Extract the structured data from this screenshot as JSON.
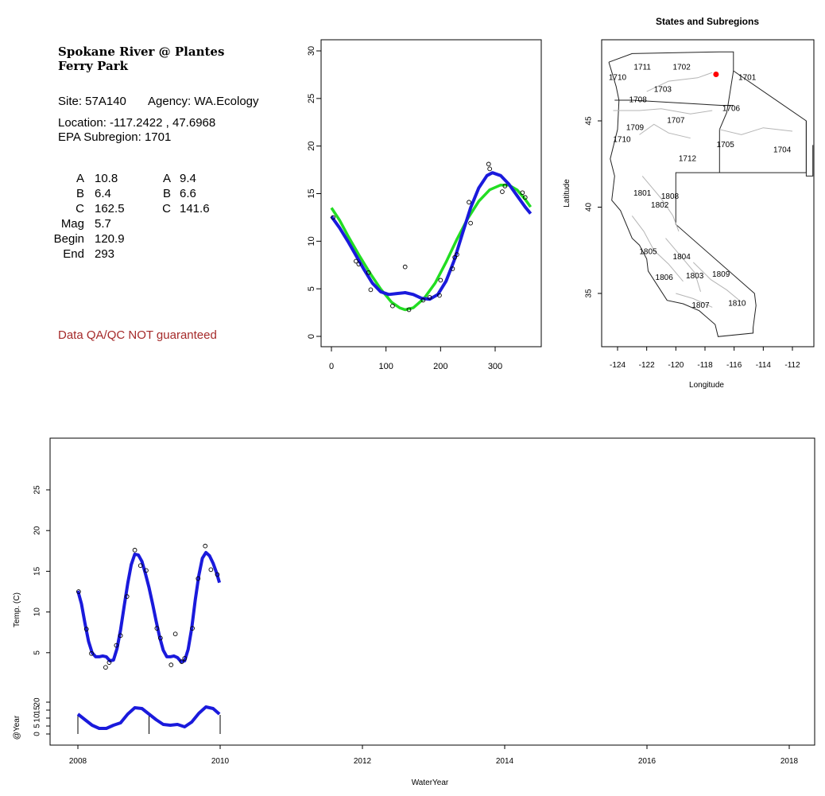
{
  "site": {
    "title_line1": "Spokane River @ Plantes",
    "title_line2": "Ferry Park",
    "site_line": "Site: 57A140",
    "agency_line": "Agency: WA.Ecology",
    "location_line": "Location: -117.2422 , 47.6968",
    "subregion_line": "EPA Subregion: 1701",
    "params_left": [
      {
        "label": "A",
        "value": "10.8"
      },
      {
        "label": "B",
        "value": "6.4"
      },
      {
        "label": "C",
        "value": "162.5"
      },
      {
        "label": "Mag",
        "value": "5.7"
      },
      {
        "label": "Begin",
        "value": "120.9"
      },
      {
        "label": "End",
        "value": "293"
      }
    ],
    "params_right": [
      {
        "label": "A",
        "value": "9.4"
      },
      {
        "label": "B",
        "value": "6.6"
      },
      {
        "label": "C",
        "value": "141.6"
      }
    ],
    "disclaimer": "Data QA/QC NOT guaranteed",
    "disclaimer_color": "#a52a2a"
  },
  "chart_data": [
    {
      "id": "seasonal",
      "type": "scatter",
      "xlim": [
        0,
        365
      ],
      "ylim": [
        0,
        30
      ],
      "xticks": [
        0,
        100,
        200,
        300
      ],
      "yticks": [
        0,
        5,
        10,
        15,
        20,
        25,
        30
      ],
      "points": [
        [
          3,
          12.5
        ],
        [
          45,
          7.9
        ],
        [
          50,
          7.6
        ],
        [
          68,
          6.7
        ],
        [
          72,
          4.9
        ],
        [
          112,
          3.2
        ],
        [
          135,
          7.3
        ],
        [
          142,
          2.8
        ],
        [
          168,
          3.8
        ],
        [
          180,
          4.1
        ],
        [
          198,
          4.3
        ],
        [
          200,
          5.9
        ],
        [
          222,
          7.1
        ],
        [
          226,
          8.3
        ],
        [
          230,
          8.6
        ],
        [
          252,
          14.1
        ],
        [
          255,
          11.9
        ],
        [
          288,
          18.1
        ],
        [
          290,
          17.6
        ],
        [
          313,
          15.2
        ],
        [
          318,
          15.8
        ],
        [
          350,
          15.1
        ],
        [
          355,
          14.6
        ]
      ],
      "series": [
        {
          "color": "#22dd22",
          "line": [
            [
              0,
              13.5
            ],
            [
              15,
              12.2
            ],
            [
              30,
              10.6
            ],
            [
              50,
              8.6
            ],
            [
              70,
              6.7
            ],
            [
              90,
              5.0
            ],
            [
              110,
              3.6
            ],
            [
              125,
              3.0
            ],
            [
              135,
              2.8
            ],
            [
              150,
              3.0
            ],
            [
              170,
              4.0
            ],
            [
              190,
              5.6
            ],
            [
              210,
              7.8
            ],
            [
              230,
              10.2
            ],
            [
              250,
              12.4
            ],
            [
              270,
              14.2
            ],
            [
              290,
              15.4
            ],
            [
              310,
              15.9
            ],
            [
              325,
              15.9
            ],
            [
              340,
              15.4
            ],
            [
              355,
              14.4
            ],
            [
              365,
              13.6
            ]
          ]
        },
        {
          "color": "#1a1adc",
          "line": [
            [
              0,
              12.6
            ],
            [
              15,
              11.4
            ],
            [
              30,
              10.0
            ],
            [
              45,
              8.5
            ],
            [
              60,
              7.0
            ],
            [
              75,
              5.6
            ],
            [
              90,
              4.7
            ],
            [
              105,
              4.4
            ],
            [
              120,
              4.5
            ],
            [
              135,
              4.6
            ],
            [
              150,
              4.4
            ],
            [
              165,
              4.0
            ],
            [
              180,
              3.9
            ],
            [
              195,
              4.4
            ],
            [
              210,
              5.8
            ],
            [
              225,
              8.0
            ],
            [
              240,
              10.8
            ],
            [
              255,
              13.5
            ],
            [
              270,
              15.6
            ],
            [
              285,
              16.9
            ],
            [
              295,
              17.2
            ],
            [
              310,
              16.9
            ],
            [
              325,
              16.0
            ],
            [
              340,
              14.8
            ],
            [
              355,
              13.6
            ],
            [
              365,
              12.9
            ]
          ]
        }
      ]
    },
    {
      "id": "map",
      "type": "scatter",
      "title": "States and Subregions",
      "xlabel": "Longitude",
      "ylabel": "Latitude",
      "xlim": [
        -125.5,
        -110.5
      ],
      "ylim": [
        32,
        49.2
      ],
      "xticks": [
        -124,
        -122,
        -120,
        -118,
        -116,
        -114,
        -112
      ],
      "yticks": [
        35,
        40,
        45
      ],
      "site_point": {
        "lon": -117.2422,
        "lat": 47.6968,
        "color": "#ff0000"
      },
      "subregions": [
        {
          "label": "1711",
          "lon": -122.3,
          "lat": 48.1
        },
        {
          "label": "1702",
          "lon": -119.6,
          "lat": 48.1
        },
        {
          "label": "1710",
          "lon": -124.0,
          "lat": 47.5
        },
        {
          "label": "1701",
          "lon": -115.1,
          "lat": 47.5
        },
        {
          "label": "1703",
          "lon": -120.9,
          "lat": 46.8
        },
        {
          "label": "1708",
          "lon": -122.6,
          "lat": 46.2
        },
        {
          "label": "1706",
          "lon": -116.2,
          "lat": 45.7
        },
        {
          "label": "1707",
          "lon": -120.0,
          "lat": 45.0
        },
        {
          "label": "1709",
          "lon": -122.8,
          "lat": 44.6
        },
        {
          "label": "1710",
          "lon": -123.7,
          "lat": 43.9
        },
        {
          "label": "1705",
          "lon": -116.6,
          "lat": 43.6
        },
        {
          "label": "1704",
          "lon": -112.7,
          "lat": 43.3
        },
        {
          "label": "1712",
          "lon": -119.2,
          "lat": 42.8
        },
        {
          "label": "1801",
          "lon": -122.3,
          "lat": 40.8
        },
        {
          "label": "1808",
          "lon": -120.4,
          "lat": 40.6
        },
        {
          "label": "1802",
          "lon": -121.1,
          "lat": 40.1
        },
        {
          "label": "1805",
          "lon": -121.9,
          "lat": 37.4
        },
        {
          "label": "1804",
          "lon": -119.6,
          "lat": 37.1
        },
        {
          "label": "1806",
          "lon": -120.8,
          "lat": 35.9
        },
        {
          "label": "1803",
          "lon": -118.7,
          "lat": 36.0
        },
        {
          "label": "1809",
          "lon": -116.9,
          "lat": 36.1
        },
        {
          "label": "1807",
          "lon": -118.3,
          "lat": 34.3
        },
        {
          "label": "1810",
          "lon": -115.8,
          "lat": 34.4
        }
      ]
    },
    {
      "id": "timeseries",
      "type": "line",
      "xlabel": "WaterYear",
      "ylabel": "Temp. (C)",
      "ylabel2": "@Year",
      "xlim": [
        2007.8,
        2018.4
      ],
      "ylim": [
        0,
        30
      ],
      "ylim2": [
        0,
        30
      ],
      "xticks": [
        2008,
        2010,
        2012,
        2014,
        2016,
        2018
      ],
      "yticks": [
        5,
        10,
        15,
        20,
        25
      ],
      "yticks2": [
        0,
        5,
        10,
        15,
        20
      ],
      "points": [
        [
          2008.01,
          12.5
        ],
        [
          2008.12,
          7.9
        ],
        [
          2008.19,
          4.9
        ],
        [
          2008.39,
          3.2
        ],
        [
          2008.44,
          3.8
        ],
        [
          2008.54,
          5.9
        ],
        [
          2008.6,
          7.1
        ],
        [
          2008.69,
          11.9
        ],
        [
          2008.8,
          17.6
        ],
        [
          2008.88,
          15.7
        ],
        [
          2008.96,
          15.1
        ],
        [
          2009.11,
          8.0
        ],
        [
          2009.16,
          6.8
        ],
        [
          2009.31,
          3.5
        ],
        [
          2009.37,
          7.3
        ],
        [
          2009.46,
          3.9
        ],
        [
          2009.5,
          4.3
        ],
        [
          2009.61,
          8.0
        ],
        [
          2009.69,
          14.1
        ],
        [
          2009.79,
          18.1
        ],
        [
          2009.87,
          15.2
        ],
        [
          2009.96,
          14.6
        ]
      ],
      "series": [
        {
          "color": "#1a1adc",
          "line": [
            [
              2008.0,
              12.6
            ],
            [
              2008.05,
              11.0
            ],
            [
              2008.1,
              8.6
            ],
            [
              2008.15,
              6.4
            ],
            [
              2008.2,
              5.0
            ],
            [
              2008.25,
              4.5
            ],
            [
              2008.3,
              4.5
            ],
            [
              2008.35,
              4.6
            ],
            [
              2008.4,
              4.5
            ],
            [
              2008.45,
              4.0
            ],
            [
              2008.5,
              4.1
            ],
            [
              2008.55,
              5.5
            ],
            [
              2008.6,
              7.8
            ],
            [
              2008.65,
              10.7
            ],
            [
              2008.7,
              13.5
            ],
            [
              2008.75,
              15.8
            ],
            [
              2008.8,
              17.1
            ],
            [
              2008.85,
              17.0
            ],
            [
              2008.9,
              16.2
            ],
            [
              2008.95,
              14.7
            ],
            [
              2009.0,
              13.0
            ],
            [
              2009.05,
              11.0
            ],
            [
              2009.1,
              8.9
            ],
            [
              2009.15,
              6.9
            ],
            [
              2009.2,
              5.3
            ],
            [
              2009.25,
              4.5
            ],
            [
              2009.3,
              4.5
            ],
            [
              2009.35,
              4.6
            ],
            [
              2009.4,
              4.4
            ],
            [
              2009.45,
              3.9
            ],
            [
              2009.5,
              4.0
            ],
            [
              2009.55,
              5.4
            ],
            [
              2009.6,
              8.0
            ],
            [
              2009.65,
              11.5
            ],
            [
              2009.7,
              14.5
            ],
            [
              2009.75,
              16.6
            ],
            [
              2009.8,
              17.3
            ],
            [
              2009.85,
              16.9
            ],
            [
              2009.9,
              16.0
            ],
            [
              2009.95,
              14.8
            ],
            [
              2009.99,
              13.6
            ]
          ]
        },
        {
          "color": "#1a1adc",
          "axis": 2,
          "line": [
            [
              2008.0,
              12.5
            ],
            [
              2008.1,
              9.0
            ],
            [
              2008.2,
              5.5
            ],
            [
              2008.3,
              3.5
            ],
            [
              2008.4,
              3.5
            ],
            [
              2008.5,
              5.5
            ],
            [
              2008.6,
              7.0
            ],
            [
              2008.7,
              12.5
            ],
            [
              2008.8,
              16.5
            ],
            [
              2008.9,
              16.0
            ],
            [
              2009.0,
              12.5
            ],
            [
              2009.1,
              9.0
            ],
            [
              2009.2,
              6.0
            ],
            [
              2009.3,
              5.5
            ],
            [
              2009.4,
              6.0
            ],
            [
              2009.5,
              4.5
            ],
            [
              2009.6,
              7.5
            ],
            [
              2009.7,
              13.0
            ],
            [
              2009.8,
              17.0
            ],
            [
              2009.9,
              16.0
            ],
            [
              2009.99,
              12.5
            ]
          ]
        }
      ],
      "year_marks": [
        2008,
        2009,
        2010
      ]
    }
  ]
}
